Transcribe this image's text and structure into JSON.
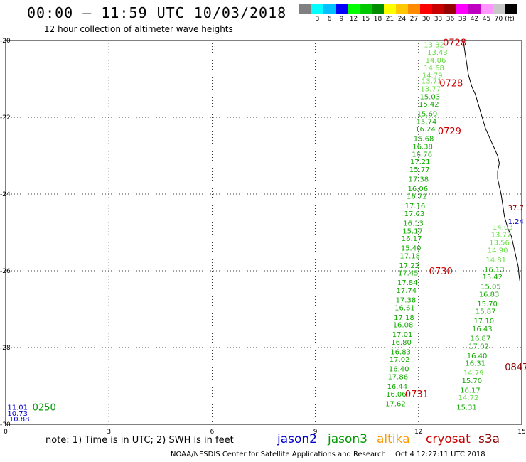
{
  "header": {
    "title": "00:00 – 11:59 UTC 10/03/2018",
    "subtitle": "12 hour collection of altimeter wave heights"
  },
  "legend": {
    "unit": "(ft)",
    "swatches": [
      {
        "color": "#808080",
        "label": ""
      },
      {
        "color": "#00ffff",
        "label": "3"
      },
      {
        "color": "#00c0ff",
        "label": "6"
      },
      {
        "color": "#0000ff",
        "label": "9"
      },
      {
        "color": "#00ff00",
        "label": "12"
      },
      {
        "color": "#00c800",
        "label": "15"
      },
      {
        "color": "#008c00",
        "label": "18"
      },
      {
        "color": "#ffff00",
        "label": "21"
      },
      {
        "color": "#ffc800",
        "label": "24"
      },
      {
        "color": "#ff8c00",
        "label": "27"
      },
      {
        "color": "#ff0000",
        "label": "30"
      },
      {
        "color": "#c80000",
        "label": "33"
      },
      {
        "color": "#960000",
        "label": "36"
      },
      {
        "color": "#ff00ff",
        "label": "39"
      },
      {
        "color": "#c000c0",
        "label": "42"
      },
      {
        "color": "#ff96ff",
        "label": "45"
      },
      {
        "color": "#c8c8c8",
        "label": "70"
      },
      {
        "color": "#000000",
        "label": ""
      }
    ]
  },
  "axes": {
    "lat_labels": [
      "-20",
      "-22",
      "-24",
      "-26",
      "-28",
      "-30"
    ],
    "lon_labels": [
      "0",
      "3",
      "6",
      "9",
      "12",
      "15"
    ]
  },
  "colors": {
    "jason2": "#0000cc",
    "jason3": "#009900",
    "altika": "#ff9900",
    "cryosat": "#cc0000",
    "s3a": "#8b0000",
    "light_green": "#66dd44",
    "green": "#11aa00"
  },
  "tracks": [
    {
      "name": "jason3-main",
      "points": [
        {
          "lat": -20.1,
          "lon": 12.45,
          "v": "13.32",
          "c": "light"
        },
        {
          "lat": -20.3,
          "lon": 12.55,
          "v": "13.43",
          "c": "light"
        },
        {
          "lat": -20.5,
          "lon": 12.5,
          "v": "14.06",
          "c": "light"
        },
        {
          "lat": -20.7,
          "lon": 12.45,
          "v": "14.68",
          "c": "light"
        },
        {
          "lat": -20.9,
          "lon": 12.4,
          "v": "14.79",
          "c": "light"
        },
        {
          "lat": -21.05,
          "lon": 12.38,
          "v": "13.71",
          "c": "light"
        },
        {
          "lat": -21.25,
          "lon": 12.35,
          "v": "13.77",
          "c": "light"
        },
        {
          "lat": -21.45,
          "lon": 12.33,
          "v": "15.03",
          "c": "dark"
        },
        {
          "lat": -21.65,
          "lon": 12.3,
          "v": "15.42",
          "c": "dark"
        },
        {
          "lat": -21.9,
          "lon": 12.25,
          "v": "15.69",
          "c": "dark"
        },
        {
          "lat": -22.1,
          "lon": 12.23,
          "v": "15.74",
          "c": "dark"
        },
        {
          "lat": -22.3,
          "lon": 12.2,
          "v": "16.24",
          "c": "dark"
        },
        {
          "lat": -22.55,
          "lon": 12.15,
          "v": "15.68",
          "c": "dark"
        },
        {
          "lat": -22.75,
          "lon": 12.12,
          "v": "16.38",
          "c": "dark"
        },
        {
          "lat": -22.95,
          "lon": 12.1,
          "v": "16.76",
          "c": "dark"
        },
        {
          "lat": -23.15,
          "lon": 12.05,
          "v": "17.21",
          "c": "dark"
        },
        {
          "lat": -23.35,
          "lon": 12.03,
          "v": "15.77",
          "c": "dark"
        },
        {
          "lat": -23.6,
          "lon": 12.0,
          "v": "17.38",
          "c": "dark"
        },
        {
          "lat": -23.85,
          "lon": 11.98,
          "v": "16.06",
          "c": "dark"
        },
        {
          "lat": -24.05,
          "lon": 11.95,
          "v": "16.72",
          "c": "dark"
        },
        {
          "lat": -24.3,
          "lon": 11.9,
          "v": "17.16",
          "c": "dark"
        },
        {
          "lat": -24.5,
          "lon": 11.88,
          "v": "17.03",
          "c": "dark"
        },
        {
          "lat": -24.75,
          "lon": 11.85,
          "v": "16.13",
          "c": "dark"
        },
        {
          "lat": -24.95,
          "lon": 11.83,
          "v": "15.17",
          "c": "dark"
        },
        {
          "lat": -25.15,
          "lon": 11.8,
          "v": "16.17",
          "c": "dark"
        },
        {
          "lat": -25.4,
          "lon": 11.78,
          "v": "15.40",
          "c": "dark"
        },
        {
          "lat": -25.6,
          "lon": 11.75,
          "v": "17.18",
          "c": "dark"
        },
        {
          "lat": -25.85,
          "lon": 11.73,
          "v": "17.22",
          "c": "dark"
        },
        {
          "lat": -26.05,
          "lon": 11.7,
          "v": "17.45",
          "c": "dark"
        },
        {
          "lat": -26.3,
          "lon": 11.68,
          "v": "17.84",
          "c": "dark"
        },
        {
          "lat": -26.5,
          "lon": 11.65,
          "v": "17.74",
          "c": "dark"
        },
        {
          "lat": -26.75,
          "lon": 11.63,
          "v": "17.38",
          "c": "dark"
        },
        {
          "lat": -26.95,
          "lon": 11.6,
          "v": "16.61",
          "c": "dark"
        },
        {
          "lat": -27.2,
          "lon": 11.58,
          "v": "17.18",
          "c": "dark"
        },
        {
          "lat": -27.4,
          "lon": 11.55,
          "v": "16.08",
          "c": "dark"
        },
        {
          "lat": -27.65,
          "lon": 11.53,
          "v": "17.01",
          "c": "dark"
        },
        {
          "lat": -27.85,
          "lon": 11.5,
          "v": "16.80",
          "c": "dark"
        },
        {
          "lat": -28.1,
          "lon": 11.48,
          "v": "16.83",
          "c": "dark"
        },
        {
          "lat": -28.3,
          "lon": 11.45,
          "v": "17.02",
          "c": "dark"
        },
        {
          "lat": -28.55,
          "lon": 11.43,
          "v": "16.40",
          "c": "dark"
        },
        {
          "lat": -28.75,
          "lon": 11.4,
          "v": "17.86",
          "c": "dark"
        },
        {
          "lat": -29.0,
          "lon": 11.38,
          "v": "16.44",
          "c": "dark"
        },
        {
          "lat": -29.2,
          "lon": 11.35,
          "v": "16.06",
          "c": "dark"
        },
        {
          "lat": -29.45,
          "lon": 11.33,
          "v": "17.62",
          "c": "dark"
        }
      ]
    },
    {
      "name": "jason3-east",
      "points": [
        {
          "lat": -24.85,
          "lon": 14.45,
          "v": "14.03",
          "c": "light"
        },
        {
          "lat": -25.05,
          "lon": 14.4,
          "v": "13.77",
          "c": "light"
        },
        {
          "lat": -25.25,
          "lon": 14.35,
          "v": "13.56",
          "c": "light"
        },
        {
          "lat": -25.45,
          "lon": 14.3,
          "v": "14.90",
          "c": "light"
        },
        {
          "lat": -25.7,
          "lon": 14.25,
          "v": "14.81",
          "c": "light"
        },
        {
          "lat": -25.95,
          "lon": 14.2,
          "v": "16.13",
          "c": "dark"
        },
        {
          "lat": -26.15,
          "lon": 14.15,
          "v": "15.42",
          "c": "dark"
        },
        {
          "lat": -26.4,
          "lon": 14.1,
          "v": "15.05",
          "c": "dark"
        },
        {
          "lat": -26.6,
          "lon": 14.05,
          "v": "16.83",
          "c": "dark"
        },
        {
          "lat": -26.85,
          "lon": 14.0,
          "v": "15.70",
          "c": "dark"
        },
        {
          "lat": -27.05,
          "lon": 13.95,
          "v": "15.87",
          "c": "dark"
        },
        {
          "lat": -27.3,
          "lon": 13.9,
          "v": "17.10",
          "c": "dark"
        },
        {
          "lat": -27.5,
          "lon": 13.85,
          "v": "16.43",
          "c": "dark"
        },
        {
          "lat": -27.75,
          "lon": 13.8,
          "v": "16.87",
          "c": "dark"
        },
        {
          "lat": -27.95,
          "lon": 13.75,
          "v": "17.02",
          "c": "dark"
        },
        {
          "lat": -28.2,
          "lon": 13.7,
          "v": "16.40",
          "c": "dark"
        },
        {
          "lat": -28.4,
          "lon": 13.65,
          "v": "16.31",
          "c": "dark"
        },
        {
          "lat": -28.65,
          "lon": 13.6,
          "v": "14.79",
          "c": "light"
        },
        {
          "lat": -28.85,
          "lon": 13.55,
          "v": "15.70",
          "c": "dark"
        },
        {
          "lat": -29.1,
          "lon": 13.5,
          "v": "16.17",
          "c": "dark"
        },
        {
          "lat": -29.3,
          "lon": 13.45,
          "v": "14.72",
          "c": "light"
        },
        {
          "lat": -29.55,
          "lon": 13.4,
          "v": "15.31",
          "c": "dark"
        }
      ]
    }
  ],
  "time_labels": [
    {
      "lat": -20.05,
      "lon": 13.05,
      "text": "0728",
      "sat": "cryosat"
    },
    {
      "lat": -21.1,
      "lon": 12.95,
      "text": "0728",
      "sat": "cryosat"
    },
    {
      "lat": -22.35,
      "lon": 12.9,
      "text": "0729",
      "sat": "cryosat"
    },
    {
      "lat": -26.0,
      "lon": 12.65,
      "text": "0730",
      "sat": "cryosat"
    },
    {
      "lat": -29.2,
      "lon": 11.95,
      "text": "0731",
      "sat": "cryosat"
    },
    {
      "lat": -28.5,
      "lon": 14.85,
      "text": "0847",
      "sat": "s3a"
    },
    {
      "lat": -29.55,
      "lon": 1.12,
      "text": "0250",
      "sat": "jason3"
    }
  ],
  "edge_values": [
    {
      "lat": -24.35,
      "lon": 14.6,
      "text": "37.7",
      "sat": "s3a"
    },
    {
      "lat": -24.7,
      "lon": 14.6,
      "text": "1.24",
      "sat": "jason2"
    },
    {
      "lat": -29.55,
      "lon": 0.05,
      "text": "11.01",
      "sat": "jason2"
    },
    {
      "lat": -29.7,
      "lon": 0.05,
      "text": "10.73",
      "sat": "jason2"
    },
    {
      "lat": -29.85,
      "lon": 0.1,
      "text": "10.88",
      "sat": "jason2"
    }
  ],
  "coast_points": [
    [
      -20.0,
      13.3
    ],
    [
      -20.3,
      13.35
    ],
    [
      -20.6,
      13.4
    ],
    [
      -20.9,
      13.45
    ],
    [
      -21.2,
      13.55
    ],
    [
      -21.4,
      13.65
    ],
    [
      -21.7,
      13.75
    ],
    [
      -22.0,
      13.85
    ],
    [
      -22.3,
      13.95
    ],
    [
      -22.6,
      14.1
    ],
    [
      -22.8,
      14.2
    ],
    [
      -23.0,
      14.3
    ],
    [
      -23.2,
      14.35
    ],
    [
      -23.4,
      14.3
    ],
    [
      -23.6,
      14.3
    ],
    [
      -23.8,
      14.35
    ],
    [
      -24.0,
      14.4
    ],
    [
      -24.3,
      14.45
    ],
    [
      -24.6,
      14.5
    ],
    [
      -24.9,
      14.6
    ],
    [
      -25.1,
      14.7
    ],
    [
      -25.3,
      14.75
    ],
    [
      -25.5,
      14.8
    ],
    [
      -25.7,
      14.85
    ],
    [
      -25.9,
      14.9
    ],
    [
      -26.1,
      14.92
    ],
    [
      -26.3,
      14.95
    ]
  ],
  "footer": {
    "note": "note:  1) Time is in UTC;  2) SWH is in feet",
    "sat_jason2": "jason2",
    "sat_jason3": "jason3",
    "sat_altika": "altika",
    "sat_cryosat": "cryosat",
    "sat_s3a": "s3a",
    "credit": "NOAA/NESDIS Center for Satellite Applications and Research",
    "timestamp": "Oct  4 12:27:11 UTC 2018"
  }
}
